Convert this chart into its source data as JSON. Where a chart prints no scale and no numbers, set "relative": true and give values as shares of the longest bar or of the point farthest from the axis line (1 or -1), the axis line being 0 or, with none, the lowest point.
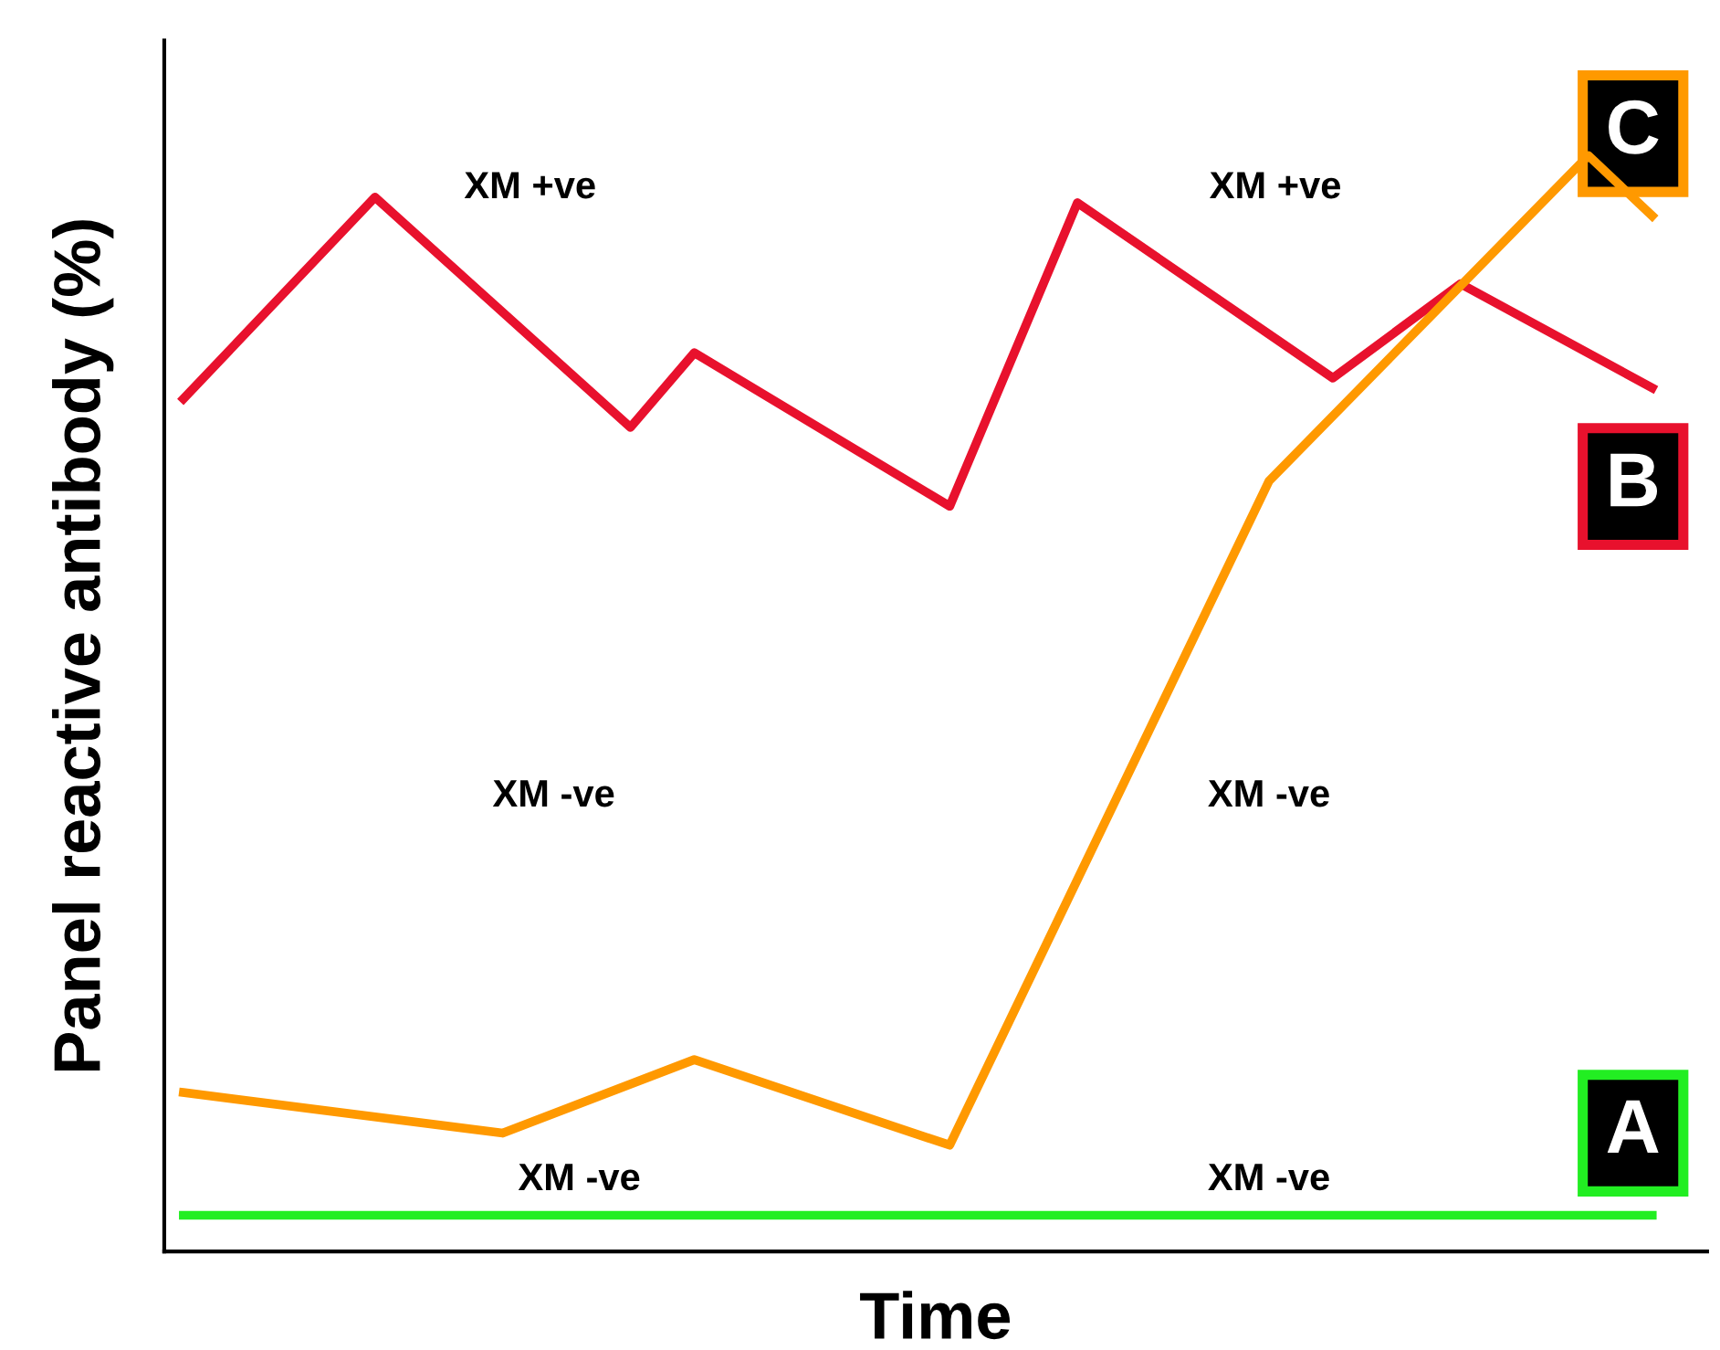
{
  "chart_data": {
    "type": "line",
    "relative": true,
    "xlabel": "Time",
    "ylabel": "Panel reactive antibody (%)",
    "categories": [
      null,
      null,
      null,
      null,
      null,
      null,
      null,
      null,
      null,
      null,
      null,
      null,
      null,
      null,
      null,
      null,
      null,
      null,
      null,
      null,
      null,
      null,
      null,
      null
    ],
    "series": [
      {
        "name": "A",
        "color": "#22ee22",
        "values": [
          0.033,
          null,
          null,
          null,
          null,
          null,
          null,
          null,
          null,
          null,
          null,
          null,
          null,
          null,
          null,
          null,
          null,
          null,
          null,
          null,
          null,
          null,
          null,
          0.033
        ]
      },
      {
        "name": "B",
        "color": "#e8112d",
        "values": [
          0.778,
          null,
          null,
          0.962,
          null,
          null,
          null,
          0.752,
          0.82,
          null,
          null,
          null,
          0.68,
          null,
          0.957,
          null,
          null,
          null,
          0.797,
          null,
          0.883,
          null,
          null,
          0.788
        ]
      },
      {
        "name": "C",
        "color": "#ff9900",
        "values": [
          0.145,
          null,
          null,
          null,
          null,
          0.108,
          null,
          null,
          0.175,
          null,
          null,
          null,
          0.097,
          null,
          null,
          null,
          null,
          0.703,
          null,
          null,
          null,
          null,
          1,
          0.945
        ]
      }
    ],
    "annotations": [
      "XM +ve",
      "XM +ve",
      "XM -ve",
      "XM -ve",
      "XM -ve",
      "XM -ve"
    ]
  }
}
